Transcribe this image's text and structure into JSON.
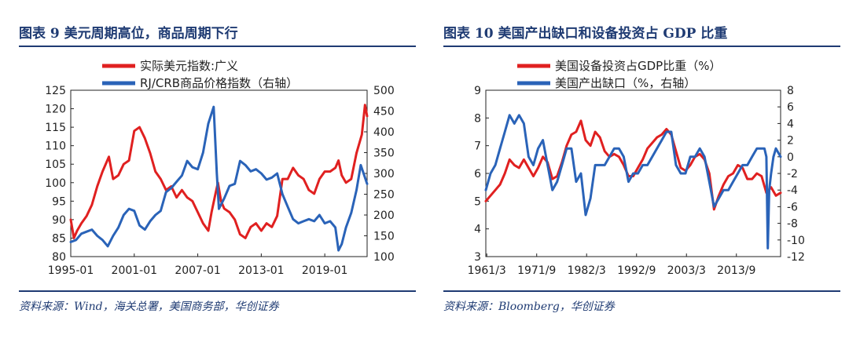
{
  "left": {
    "title": "图表 9  美元周期高位，商品周期下行",
    "source": "资料来源：Wind，海关总署，美国商务部，华创证券"
  },
  "right": {
    "title": "图表 10  美国产出缺口和设备投资占 GDP 比重",
    "source": "资料来源：Bloomberg，华创证券"
  },
  "colors": {
    "red": "#e02020",
    "blue": "#2a63b8",
    "navy": "#1f3b73"
  },
  "chart_data": [
    {
      "type": "line",
      "title": "美元周期高位，商品周期下行",
      "legend": [
        "实际美元指数:广义",
        "RJ/CRB商品价格指数（右轴）"
      ],
      "legend_position": "top",
      "x_ticks": [
        "1995-01",
        "2001-01",
        "2007-01",
        "2013-01",
        "2019-01"
      ],
      "x_range": [
        1995.0,
        2023.0
      ],
      "y_left": {
        "ticks": [
          80,
          85,
          90,
          95,
          100,
          105,
          110,
          115,
          120,
          125
        ],
        "range": [
          80,
          125
        ]
      },
      "y_right": {
        "ticks": [
          100,
          150,
          200,
          250,
          300,
          350,
          400,
          450,
          500
        ],
        "range": [
          100,
          500
        ]
      },
      "grid": false,
      "series": [
        {
          "name": "实际美元指数:广义",
          "color": "#e02020",
          "axis": "left",
          "x": [
            1995.0,
            1995.3,
            1995.6,
            1996.0,
            1996.5,
            1997.0,
            1997.5,
            1998.0,
            1998.6,
            1999.0,
            1999.5,
            2000.0,
            2000.5,
            2001.0,
            2001.5,
            2002.0,
            2002.5,
            2003.0,
            2003.5,
            2004.0,
            2004.5,
            2005.0,
            2005.5,
            2006.0,
            2006.5,
            2007.0,
            2007.5,
            2008.0,
            2008.3,
            2008.6,
            2008.9,
            2009.2,
            2009.5,
            2010.0,
            2010.5,
            2011.0,
            2011.5,
            2012.0,
            2012.5,
            2013.0,
            2013.5,
            2014.0,
            2014.5,
            2015.0,
            2015.5,
            2016.0,
            2016.5,
            2017.0,
            2017.5,
            2018.0,
            2018.5,
            2019.0,
            2019.5,
            2020.0,
            2020.3,
            2020.6,
            2021.0,
            2021.5,
            2022.0,
            2022.5,
            2022.8,
            2023.0
          ],
          "y": [
            90,
            85,
            87,
            89,
            91,
            94,
            99,
            103,
            107,
            101,
            102,
            105,
            106,
            114,
            115,
            112,
            108,
            103,
            101,
            98,
            99,
            96,
            98,
            96,
            95,
            92,
            89,
            87,
            92,
            96,
            100,
            95,
            93,
            92,
            90,
            86,
            85,
            88,
            89,
            87,
            89,
            88,
            91,
            101,
            101,
            104,
            102,
            101,
            98,
            97,
            101,
            103,
            103,
            104,
            106,
            102,
            100,
            101,
            108,
            113,
            121,
            118
          ]
        },
        {
          "name": "RJ/CRB商品价格指数（右轴）",
          "color": "#2a63b8",
          "axis": "right",
          "x": [
            1995.0,
            1995.5,
            1996.0,
            1996.5,
            1997.0,
            1997.5,
            1998.0,
            1998.5,
            1999.0,
            1999.5,
            2000.0,
            2000.5,
            2001.0,
            2001.5,
            2002.0,
            2002.5,
            2003.0,
            2003.5,
            2004.0,
            2004.5,
            2005.0,
            2005.5,
            2006.0,
            2006.5,
            2007.0,
            2007.5,
            2008.0,
            2008.5,
            2008.8,
            2009.0,
            2009.5,
            2010.0,
            2010.5,
            2011.0,
            2011.5,
            2012.0,
            2012.5,
            2013.0,
            2013.5,
            2014.0,
            2014.5,
            2015.0,
            2015.5,
            2016.0,
            2016.5,
            2017.0,
            2017.5,
            2018.0,
            2018.5,
            2019.0,
            2019.5,
            2020.0,
            2020.3,
            2020.6,
            2021.0,
            2021.5,
            2022.0,
            2022.4,
            2022.8,
            2023.0
          ],
          "y": [
            135,
            140,
            155,
            160,
            165,
            150,
            140,
            125,
            150,
            170,
            200,
            215,
            210,
            175,
            165,
            185,
            200,
            210,
            255,
            265,
            280,
            295,
            330,
            315,
            310,
            350,
            420,
            460,
            300,
            215,
            240,
            270,
            275,
            330,
            320,
            305,
            310,
            300,
            285,
            290,
            300,
            250,
            220,
            190,
            180,
            185,
            190,
            185,
            200,
            180,
            185,
            170,
            115,
            130,
            170,
            205,
            260,
            320,
            290,
            275
          ]
        }
      ]
    },
    {
      "type": "line",
      "title": "美国产出缺口和设备投资占 GDP 比重",
      "legend": [
        "美国设备投资占GDP比重（%）",
        "美国产出缺口（%，右轴）"
      ],
      "legend_position": "top",
      "x_ticks": [
        "1961/3",
        "1971/9",
        "1982/3",
        "1992/9",
        "2003/3",
        "2013/9"
      ],
      "x_range": [
        1961.0,
        2023.0
      ],
      "y_left": {
        "ticks": [
          3,
          4,
          5,
          6,
          7,
          8,
          9
        ],
        "range": [
          3,
          9
        ]
      },
      "y_right": {
        "ticks": [
          -12,
          -10,
          -8,
          -6,
          -4,
          -2,
          0,
          2,
          4,
          6,
          8
        ],
        "range": [
          -12,
          8
        ]
      },
      "grid": false,
      "series": [
        {
          "name": "美国设备投资占GDP比重（%）",
          "color": "#e02020",
          "axis": "left",
          "x": [
            1961,
            1962,
            1963,
            1964,
            1965,
            1966,
            1967,
            1968,
            1969,
            1970,
            1971,
            1972,
            1973,
            1974,
            1975,
            1976,
            1977,
            1978,
            1979,
            1980,
            1981,
            1982,
            1983,
            1984,
            1985,
            1986,
            1987,
            1988,
            1989,
            1990,
            1991,
            1992,
            1993,
            1994,
            1995,
            1996,
            1997,
            1998,
            1999,
            2000,
            2001,
            2002,
            2003,
            2004,
            2005,
            2006,
            2007,
            2008,
            2009,
            2010,
            2011,
            2012,
            2013,
            2014,
            2015,
            2016,
            2017,
            2018,
            2019,
            2020,
            2021,
            2022,
            2023
          ],
          "y": [
            5.0,
            5.2,
            5.4,
            5.6,
            6.0,
            6.5,
            6.3,
            6.2,
            6.5,
            6.2,
            5.9,
            6.2,
            6.6,
            6.4,
            5.8,
            5.9,
            6.4,
            7.0,
            7.4,
            7.5,
            7.9,
            7.2,
            7.0,
            7.5,
            7.3,
            6.8,
            6.6,
            6.7,
            6.6,
            6.3,
            5.9,
            5.9,
            6.2,
            6.5,
            6.9,
            7.1,
            7.3,
            7.4,
            7.6,
            7.4,
            6.8,
            6.2,
            6.1,
            6.3,
            6.6,
            6.7,
            6.5,
            6.0,
            4.7,
            5.2,
            5.6,
            5.9,
            6.0,
            6.3,
            6.2,
            5.8,
            5.8,
            6.0,
            5.9,
            5.3,
            5.5,
            5.2,
            5.3
          ]
        },
        {
          "name": "美国产出缺口（%，右轴）",
          "color": "#2a63b8",
          "axis": "right",
          "x": [
            1961,
            1962,
            1963,
            1964,
            1965,
            1966,
            1967,
            1968,
            1969,
            1970,
            1971,
            1972,
            1973,
            1974,
            1975,
            1976,
            1977,
            1978,
            1979,
            1980,
            1981,
            1982,
            1983,
            1984,
            1985,
            1986,
            1987,
            1988,
            1989,
            1990,
            1991,
            1992,
            1993,
            1994,
            1995,
            1996,
            1997,
            1998,
            1999,
            2000,
            2001,
            2002,
            2003,
            2004,
            2005,
            2006,
            2007,
            2008,
            2009,
            2010,
            2011,
            2012,
            2013,
            2014,
            2015,
            2016,
            2017,
            2018,
            2019,
            2019.6,
            2020.0,
            2020.3,
            2020.6,
            2021.0,
            2021.5,
            2022.0,
            2023.0
          ],
          "y": [
            -4,
            -2,
            -1,
            1,
            3,
            5,
            4,
            5,
            4,
            0,
            -1,
            1,
            2,
            -1,
            -4,
            -3,
            -1,
            1,
            1,
            -3,
            -2,
            -7,
            -5,
            -1,
            -1,
            -1,
            0,
            1,
            1,
            0,
            -3,
            -2,
            -2,
            -1,
            -1,
            0,
            1,
            2,
            3,
            3,
            -1,
            -2,
            -2,
            0,
            0,
            1,
            0,
            -3,
            -6,
            -5,
            -4,
            -4,
            -3,
            -2,
            -1,
            -1,
            0,
            1,
            1,
            1,
            0,
            -11,
            -4,
            -2,
            0,
            1,
            0
          ]
        }
      ]
    }
  ]
}
